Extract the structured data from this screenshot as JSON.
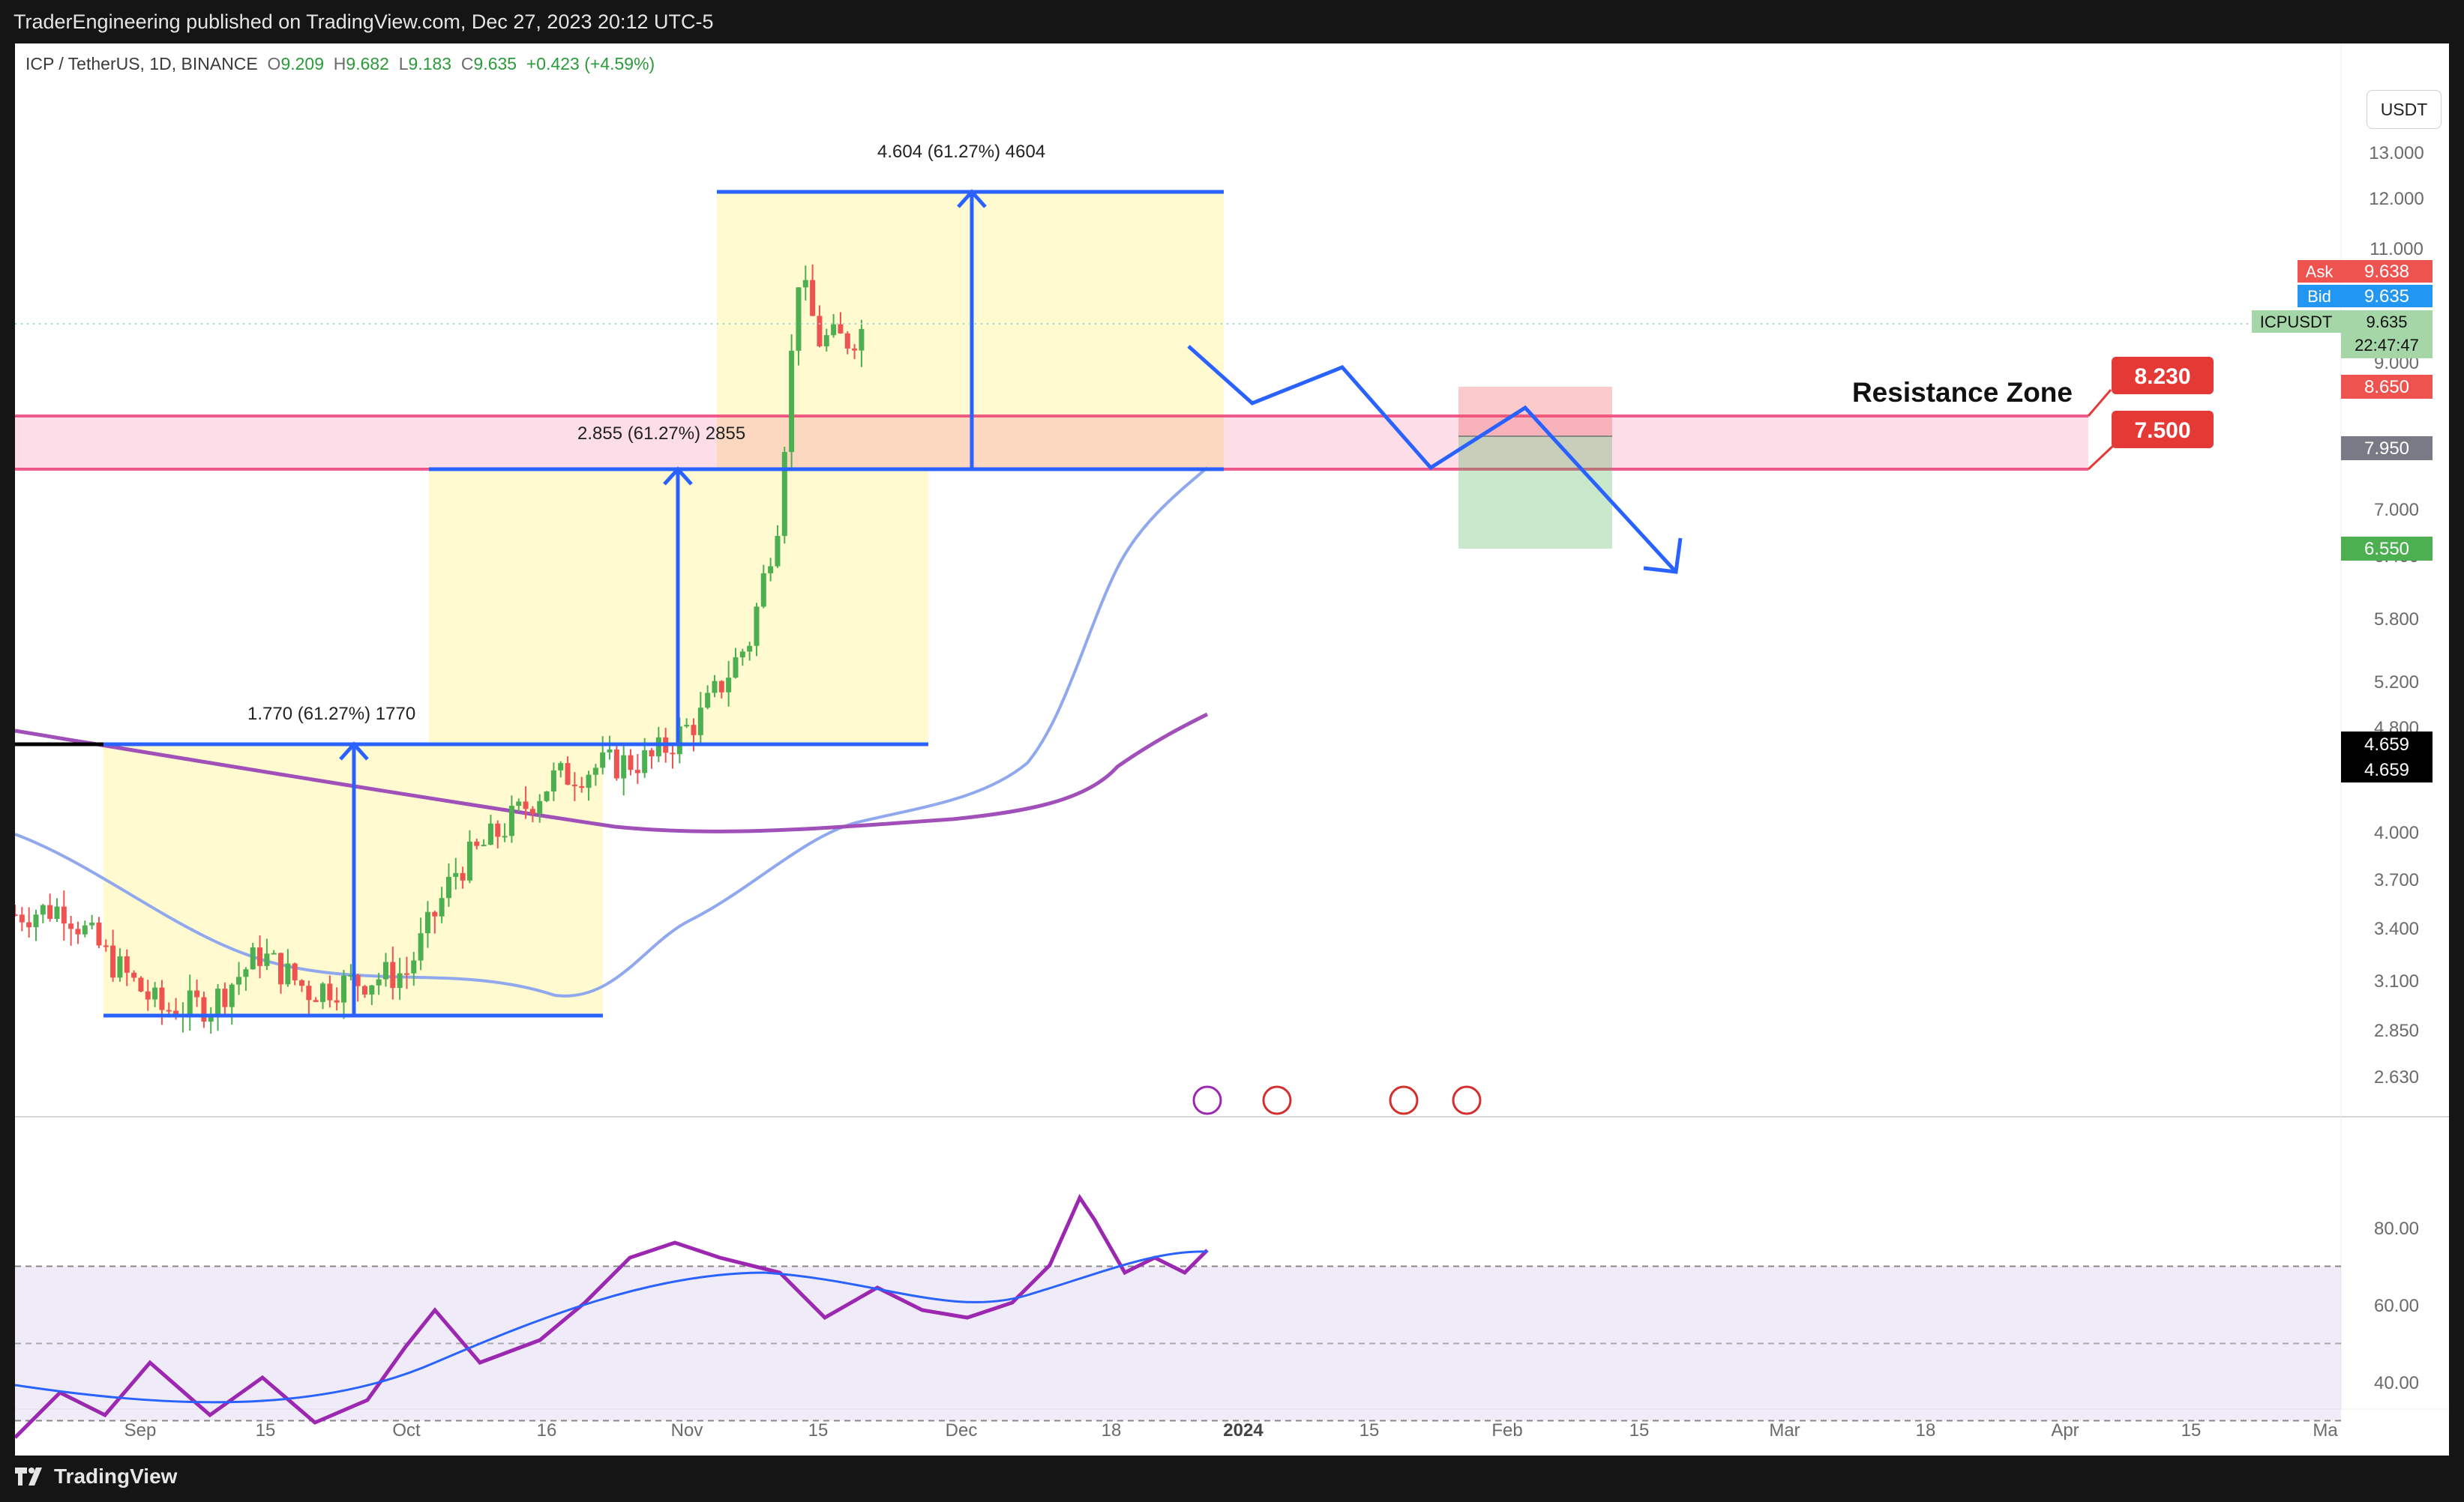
{
  "header": {
    "published_text": "TraderEngineering published on TradingView.com, Dec 27, 2023 20:12 UTC-5"
  },
  "footer": {
    "brand": "TradingView"
  },
  "legend": {
    "symbol": "ICP / TetherUS, 1D, BINANCE",
    "o_label": "O",
    "o": "9.209",
    "h_label": "H",
    "h": "9.682",
    "l_label": "L",
    "l": "9.183",
    "c_label": "C",
    "c": "9.635",
    "change": "+0.423 (+4.59%)"
  },
  "currency_button": "USDT",
  "colors": {
    "up": "#26a69a",
    "up_candle": "#4caf50",
    "down_candle": "#ef5350",
    "accent_blue": "#2962ff",
    "ma_fast": "#8fa8ee",
    "ma_slow": "#a050b8",
    "rsi_line": "#9c27b0",
    "rsi_ma": "#2962ff",
    "zone": "#e91e63"
  },
  "chart_data": {
    "type": "candlestick",
    "symbol": "ICPUSDT",
    "timeframe": "1D",
    "exchange": "BINANCE",
    "y_scale": "log",
    "y_axis_ticks": [
      "13.000",
      "12.000",
      "11.000",
      "9.000",
      "7.000",
      "6.400",
      "5.800",
      "5.200",
      "4.800",
      "4.000",
      "3.700",
      "3.400",
      "3.100",
      "2.850",
      "2.630"
    ],
    "x_axis_ticks": [
      "Sep",
      "15",
      "Oct",
      "16",
      "Nov",
      "15",
      "Dec",
      "18",
      "2024",
      "15",
      "Feb",
      "15",
      "Mar",
      "18",
      "Apr",
      "15",
      "Ma"
    ],
    "x_range": [
      "2023-08-27",
      "2024-05-01"
    ],
    "y_range": [
      2.5,
      14
    ],
    "candles_approx": [
      {
        "date": "2023-08-27",
        "close": 3.48
      },
      {
        "date": "2023-09-03",
        "close": 3.52
      },
      {
        "date": "2023-09-10",
        "close": 3.2
      },
      {
        "date": "2023-09-17",
        "close": 2.95
      },
      {
        "date": "2023-09-24",
        "close": 2.98
      },
      {
        "date": "2023-10-01",
        "close": 3.25
      },
      {
        "date": "2023-10-08",
        "close": 3.05
      },
      {
        "date": "2023-10-15",
        "close": 3.1
      },
      {
        "date": "2023-10-22",
        "close": 3.15
      },
      {
        "date": "2023-10-29",
        "close": 3.75
      },
      {
        "date": "2023-11-05",
        "close": 4.05
      },
      {
        "date": "2023-11-12",
        "close": 4.4
      },
      {
        "date": "2023-11-19",
        "close": 4.5
      },
      {
        "date": "2023-11-26",
        "close": 4.55
      },
      {
        "date": "2023-12-03",
        "close": 4.9
      },
      {
        "date": "2023-12-10",
        "close": 5.6
      },
      {
        "date": "2023-12-14",
        "close": 6.9
      },
      {
        "date": "2023-12-17",
        "close": 10.5
      },
      {
        "date": "2023-12-20",
        "close": 9.4
      },
      {
        "date": "2023-12-24",
        "close": 9.4
      },
      {
        "date": "2023-12-27",
        "close": 9.635
      }
    ],
    "price_labels": [
      {
        "label": "Ask",
        "value": "9.638",
        "color": "#ef5350"
      },
      {
        "label": "Bid",
        "value": "9.635",
        "color": "#2196f3"
      },
      {
        "label": "ICPUSDT",
        "value": "9.635",
        "extra": "22:47:47",
        "color": "#a5d6a7"
      },
      {
        "label": "",
        "value": "8.650",
        "color": "#ef5350"
      },
      {
        "label": "",
        "value": "7.950",
        "color": "#787b86"
      },
      {
        "label": "",
        "value": "6.550",
        "color": "#4caf50"
      },
      {
        "label": "",
        "value": "4.659",
        "color": "#000000"
      },
      {
        "label": "",
        "value": "4.659",
        "color": "#000000"
      }
    ],
    "annotations": {
      "resistance_zone": {
        "text": "Resistance Zone",
        "top": "8.230",
        "bottom": "7.500"
      },
      "measures": [
        {
          "text": "1.770 (61.27%) 1770"
        },
        {
          "text": "2.855 (61.27%) 2855"
        },
        {
          "text": "4.604 (61.27%) 4604"
        }
      ],
      "short_position": {
        "stop": "8.650",
        "entry": "7.950",
        "target": "6.550"
      }
    },
    "rsi": {
      "levels": [
        80,
        60,
        40
      ],
      "tick_labels": [
        "80.00",
        "60.00",
        "40.00"
      ]
    }
  }
}
